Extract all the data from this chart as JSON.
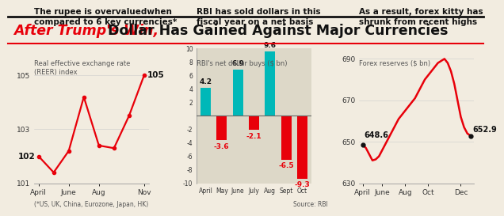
{
  "title_red": "After Trump's Win,",
  "title_black": " Dollar Has Gained Against Major Currencies",
  "chart1_title": "The rupee is overvaluedwhen\ncompared to 6 key currencies*",
  "chart1_subtitle": "Real effective exchange rate\n(REER) index",
  "chart1_x": [
    0,
    1,
    2,
    3,
    4,
    5,
    6,
    7
  ],
  "chart1_y": [
    102,
    101.4,
    102.2,
    104.2,
    102.4,
    102.3,
    103.5,
    105
  ],
  "chart1_ylim": [
    101,
    106
  ],
  "chart1_yticks": [
    101,
    103,
    105
  ],
  "chart1_xticks": [
    0,
    2,
    4,
    7
  ],
  "chart1_xlabels": [
    "April",
    "June",
    "Aug",
    "Nov"
  ],
  "chart1_label_start": "102",
  "chart1_label_end": "105",
  "chart1_color": "#e8000a",
  "chart2_title": "RBI has sold dollars in this\nfiscal year on a net basis",
  "chart2_subtitle": "RBI's net dollar buys ($ bn)",
  "chart2_months": [
    "April",
    "May",
    "June",
    "July",
    "Aug",
    "Sept",
    "Oct"
  ],
  "chart2_values": [
    4.2,
    -3.6,
    6.9,
    -2.1,
    9.6,
    -6.5,
    -9.3
  ],
  "chart2_ylim": [
    -10,
    10
  ],
  "chart2_yticks": [
    -10,
    -8,
    -6,
    -4,
    -2,
    0,
    2,
    4,
    6,
    8,
    10
  ],
  "chart2_pos_color": "#00b8b8",
  "chart2_neg_color": "#e8000a",
  "chart2_bg": "#ddd8c8",
  "chart2_footnote": "(*US, UK, China, Eurozone, Japan, HK)",
  "chart2_source": "Source: RBI",
  "chart3_title": "As a result, forex kitty has\nshrunk from recent highs",
  "chart3_subtitle": "Forex reserves ($ bn)",
  "chart3_x": [
    0,
    1,
    2,
    3,
    4,
    5,
    6,
    7,
    8,
    9,
    10,
    11,
    12,
    13,
    14,
    15,
    16,
    17,
    18,
    19,
    20,
    21,
    22,
    23,
    24,
    25,
    26,
    27,
    28,
    29,
    30,
    31,
    32,
    33
  ],
  "chart3_y": [
    648.6,
    647,
    644,
    641,
    641.5,
    643,
    646,
    649,
    652,
    655,
    658,
    661,
    663,
    665,
    667,
    669,
    671,
    674,
    677,
    680,
    682,
    684,
    686,
    688,
    689,
    690,
    688,
    684,
    678,
    670,
    662,
    657,
    654,
    652.9
  ],
  "chart3_xlabels": [
    "April",
    "June",
    "Aug",
    "Oct",
    "Dec"
  ],
  "chart3_xtick_pos": [
    0,
    6,
    13,
    20,
    30
  ],
  "chart3_ylim": [
    630,
    695
  ],
  "chart3_yticks": [
    630,
    650,
    670,
    690
  ],
  "chart3_label_start": "648.6",
  "chart3_label_end": "652.9",
  "chart3_color": "#e8000a",
  "bg_color": "#f2ece0",
  "line_color_top": "#333333",
  "line_color_red": "#e8000a"
}
